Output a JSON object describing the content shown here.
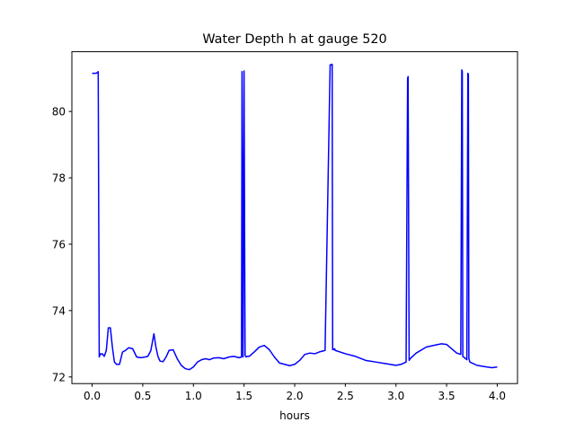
{
  "chart_data": {
    "type": "line",
    "title": "Water Depth h at gauge 520",
    "xlabel": "hours",
    "ylabel": "",
    "xlim": [
      -0.2,
      4.2
    ],
    "ylim": [
      71.8,
      81.8
    ],
    "xticks": [
      0.0,
      0.5,
      1.0,
      1.5,
      2.0,
      2.5,
      3.0,
      3.5,
      4.0
    ],
    "xtick_labels": [
      "0.0",
      "0.5",
      "1.0",
      "1.5",
      "2.0",
      "2.5",
      "3.0",
      "3.5",
      "4.0"
    ],
    "yticks": [
      72,
      74,
      76,
      78,
      80
    ],
    "ytick_labels": [
      "72",
      "74",
      "76",
      "78",
      "80"
    ],
    "grid": false,
    "series": [
      {
        "color": "#0000ff",
        "x": [
          0.0,
          0.04,
          0.05,
          0.06,
          0.07,
          0.08,
          0.09,
          0.1,
          0.12,
          0.14,
          0.16,
          0.18,
          0.2,
          0.22,
          0.24,
          0.27,
          0.3,
          0.33,
          0.36,
          0.4,
          0.44,
          0.48,
          0.52,
          0.55,
          0.58,
          0.61,
          0.63,
          0.65,
          0.67,
          0.7,
          0.73,
          0.76,
          0.8,
          0.84,
          0.88,
          0.92,
          0.96,
          1.0,
          1.04,
          1.08,
          1.12,
          1.16,
          1.2,
          1.25,
          1.3,
          1.35,
          1.4,
          1.45,
          1.475,
          1.48,
          1.49,
          1.5,
          1.51,
          1.52,
          1.53,
          1.55,
          1.6,
          1.65,
          1.7,
          1.75,
          1.8,
          1.85,
          1.9,
          1.95,
          2.0,
          2.05,
          2.1,
          2.15,
          2.2,
          2.25,
          2.3,
          2.35,
          2.37,
          2.375,
          2.38,
          2.39,
          2.395,
          2.4,
          2.45,
          2.5,
          2.6,
          2.7,
          2.8,
          2.9,
          3.0,
          3.05,
          3.1,
          3.115,
          3.12,
          3.13,
          3.135,
          3.14,
          3.2,
          3.3,
          3.4,
          3.45,
          3.5,
          3.55,
          3.6,
          3.64,
          3.65,
          3.655,
          3.66,
          3.7,
          3.71,
          3.715,
          3.72,
          3.73,
          3.8,
          3.9,
          3.95,
          4.0
        ],
        "values": [
          81.15,
          81.15,
          81.17,
          81.2,
          72.6,
          72.7,
          72.68,
          72.7,
          72.62,
          72.8,
          73.48,
          73.48,
          72.9,
          72.45,
          72.38,
          72.38,
          72.75,
          72.8,
          72.88,
          72.85,
          72.6,
          72.58,
          72.6,
          72.62,
          72.8,
          73.3,
          72.9,
          72.62,
          72.48,
          72.46,
          72.6,
          72.8,
          72.82,
          72.55,
          72.35,
          72.25,
          72.22,
          72.3,
          72.45,
          72.52,
          72.55,
          72.52,
          72.57,
          72.58,
          72.55,
          72.6,
          72.62,
          72.58,
          72.6,
          81.2,
          72.6,
          81.22,
          72.65,
          72.6,
          72.62,
          72.62,
          72.75,
          72.9,
          72.95,
          72.82,
          72.6,
          72.42,
          72.38,
          72.34,
          72.38,
          72.5,
          72.68,
          72.72,
          72.7,
          72.76,
          72.8,
          81.4,
          81.42,
          72.82,
          72.85,
          72.82,
          72.85,
          72.8,
          72.75,
          72.7,
          72.62,
          72.5,
          72.45,
          72.4,
          72.35,
          72.38,
          72.45,
          81.0,
          81.05,
          72.5,
          72.52,
          72.55,
          72.72,
          72.9,
          72.97,
          73.0,
          72.98,
          72.85,
          72.72,
          72.68,
          81.25,
          81.2,
          72.62,
          72.52,
          81.15,
          81.12,
          72.55,
          72.45,
          72.35,
          72.3,
          72.28,
          72.3
        ]
      }
    ]
  }
}
